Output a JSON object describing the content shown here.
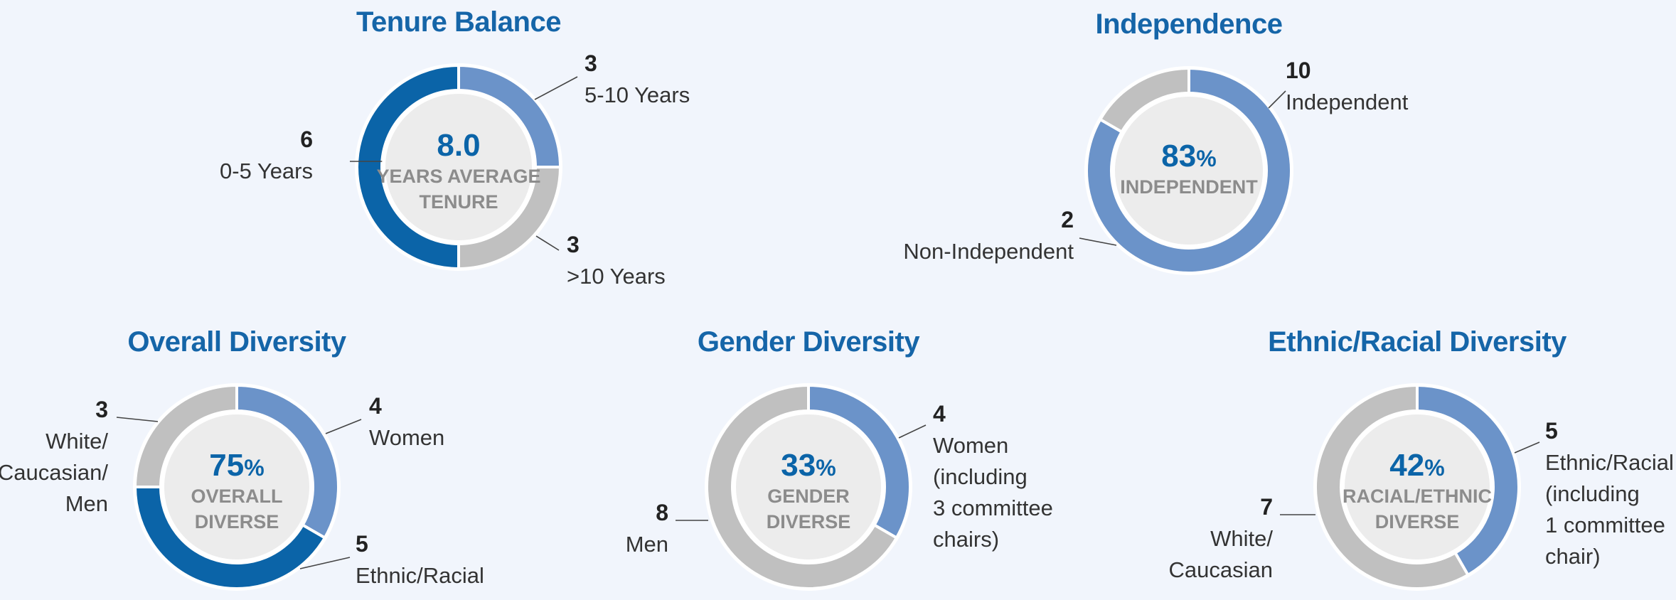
{
  "colors": {
    "background": "#f1f5fc",
    "title": "#1565a8",
    "dark_blue": "#0b64a8",
    "light_blue": "#6b93c9",
    "gray": "#c0c0c0",
    "inner_fill": "#ececec",
    "center_label": "#8c8c8c"
  },
  "chart_data": [
    {
      "type": "pie",
      "title": "Tenure Balance",
      "center_value": "8.0",
      "center_suffix": "",
      "center_label_lines": [
        "YEARS AVERAGE",
        "TENURE"
      ],
      "slices": [
        {
          "label_lines": [
            "5-10 Years"
          ],
          "value": 3,
          "color_key": "light_blue"
        },
        {
          "label_lines": [
            ">10 Years"
          ],
          "value": 3,
          "color_key": "gray"
        },
        {
          "label_lines": [
            "0-5 Years"
          ],
          "value": 6,
          "color_key": "dark_blue"
        }
      ]
    },
    {
      "type": "pie",
      "title": "Independence",
      "center_value": "83",
      "center_suffix": "%",
      "center_label_lines": [
        "INDEPENDENT"
      ],
      "slices": [
        {
          "label_lines": [
            "Independent"
          ],
          "value": 10,
          "color_key": "light_blue"
        },
        {
          "label_lines": [
            "Non-Independent"
          ],
          "value": 2,
          "color_key": "gray"
        }
      ]
    },
    {
      "type": "pie",
      "title": "Overall Diversity",
      "center_value": "75",
      "center_suffix": "%",
      "center_label_lines": [
        "OVERALL",
        "DIVERSE"
      ],
      "slices": [
        {
          "label_lines": [
            "Women"
          ],
          "value": 4,
          "color_key": "light_blue"
        },
        {
          "label_lines": [
            "Ethnic/Racial"
          ],
          "value": 5,
          "color_key": "dark_blue"
        },
        {
          "label_lines": [
            "White/",
            "Caucasian/",
            "Men"
          ],
          "value": 3,
          "color_key": "gray"
        }
      ]
    },
    {
      "type": "pie",
      "title": "Gender Diversity",
      "center_value": "33",
      "center_suffix": "%",
      "center_label_lines": [
        "GENDER",
        "DIVERSE"
      ],
      "slices": [
        {
          "label_lines": [
            "Women",
            "(including",
            "3 committee",
            "chairs)"
          ],
          "value": 4,
          "color_key": "light_blue"
        },
        {
          "label_lines": [
            "Men"
          ],
          "value": 8,
          "color_key": "gray"
        }
      ]
    },
    {
      "type": "pie",
      "title": "Ethnic/Racial Diversity",
      "center_value": "42",
      "center_suffix": "%",
      "center_label_lines": [
        "RACIAL/ETHNIC",
        "DIVERSE"
      ],
      "slices": [
        {
          "label_lines": [
            "Ethnic/Racial",
            "(including",
            "1 committee",
            "chair)"
          ],
          "value": 5,
          "color_key": "light_blue"
        },
        {
          "label_lines": [
            "White/",
            "Caucasian"
          ],
          "value": 7,
          "color_key": "gray"
        }
      ]
    }
  ]
}
